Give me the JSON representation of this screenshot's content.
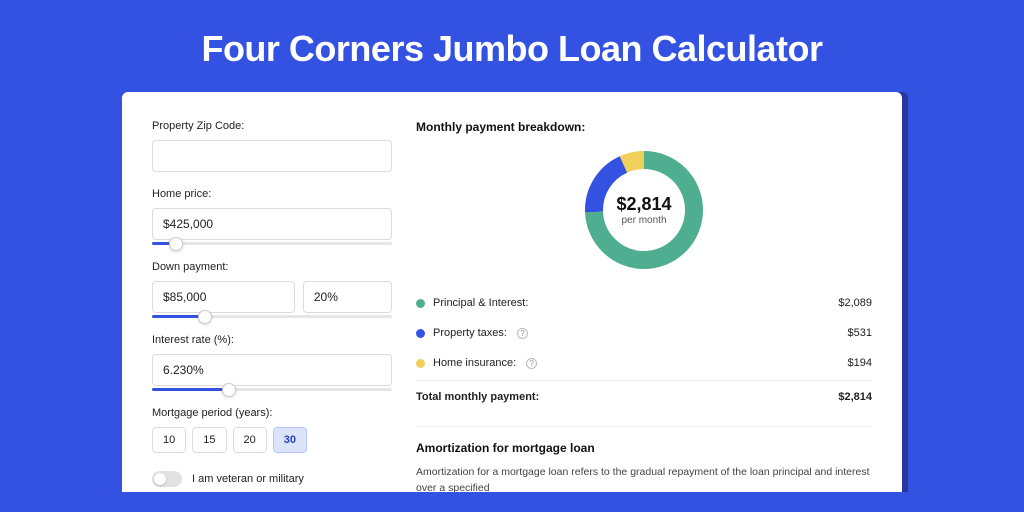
{
  "page": {
    "title": "Four Corners Jumbo Loan Calculator",
    "background_color": "#3452e1",
    "card_background": "#ffffff",
    "card_shadow_color": "#26369e"
  },
  "form": {
    "zip": {
      "label": "Property Zip Code:",
      "value": ""
    },
    "home_price": {
      "label": "Home price:",
      "value": "$425,000",
      "slider_pct": 10
    },
    "down_payment": {
      "label": "Down payment:",
      "value": "$85,000",
      "pct_value": "20%",
      "slider_pct": 22
    },
    "interest_rate": {
      "label": "Interest rate (%):",
      "value": "6.230%",
      "slider_pct": 32
    },
    "mortgage_period": {
      "label": "Mortgage period (years):",
      "options": [
        "10",
        "15",
        "20",
        "30"
      ],
      "active_index": 3
    },
    "veteran": {
      "label": "I am veteran or military",
      "checked": false
    }
  },
  "breakdown": {
    "header": "Monthly payment breakdown:",
    "donut": {
      "type": "pie",
      "amount": "$2,814",
      "sub": "per month",
      "ring_width": 18,
      "background_color": "#ffffff",
      "slices": [
        {
          "key": "principal_interest",
          "value": 2089,
          "color": "#4eae8f"
        },
        {
          "key": "property_taxes",
          "value": 531,
          "color": "#3452e1"
        },
        {
          "key": "home_insurance",
          "value": 194,
          "color": "#f1cf5b"
        }
      ]
    },
    "items": [
      {
        "label": "Principal & Interest:",
        "value": "$2,089",
        "color": "#4eae8f",
        "info": false
      },
      {
        "label": "Property taxes:",
        "value": "$531",
        "color": "#3452e1",
        "info": true
      },
      {
        "label": "Home insurance:",
        "value": "$194",
        "color": "#f1cf5b",
        "info": true
      }
    ],
    "total": {
      "label": "Total monthly payment:",
      "value": "$2,814"
    }
  },
  "amortization": {
    "header": "Amortization for mortgage loan",
    "text": "Amortization for a mortgage loan refers to the gradual repayment of the loan principal and interest over a specified"
  }
}
